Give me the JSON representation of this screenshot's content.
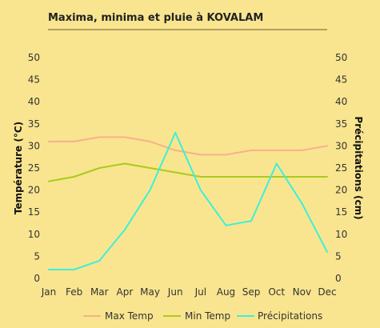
{
  "chart_data": {
    "type": "line",
    "title": "Maxima, minima et pluie à KOVALAM",
    "categories": [
      "Jan",
      "Feb",
      "Mar",
      "Apr",
      "May",
      "Jun",
      "Jul",
      "Aug",
      "Sep",
      "Oct",
      "Nov",
      "Dec"
    ],
    "ylabel_left": "Température (°C)",
    "ylabel_right": "Précipitations (cm)",
    "ylim_left": [
      0,
      50
    ],
    "ylim_right": [
      0,
      50
    ],
    "yticks_left": [
      "0",
      "5",
      "10",
      "15",
      "20",
      "25",
      "30",
      "35",
      "40",
      "45",
      "50"
    ],
    "yticks_right": [
      "0",
      "5",
      "10",
      "15",
      "20",
      "25",
      "30",
      "35",
      "40",
      "45",
      "50"
    ],
    "grid": false,
    "legend_position": "bottom",
    "series": [
      {
        "name": "Max Temp",
        "axis": "left",
        "color": "#f7b08c",
        "values": [
          31,
          31,
          32,
          32,
          31,
          29,
          28,
          28,
          29,
          29,
          29,
          30
        ]
      },
      {
        "name": "Min Temp",
        "axis": "left",
        "color": "#a8cc1c",
        "values": [
          22,
          23,
          25,
          26,
          25,
          24,
          23,
          23,
          23,
          23,
          23,
          23
        ]
      },
      {
        "name": "Précipitations",
        "axis": "right",
        "color": "#3cf0d8",
        "values": [
          2,
          2,
          4,
          11,
          20,
          33,
          20,
          12,
          13,
          26,
          17,
          6
        ]
      }
    ]
  }
}
